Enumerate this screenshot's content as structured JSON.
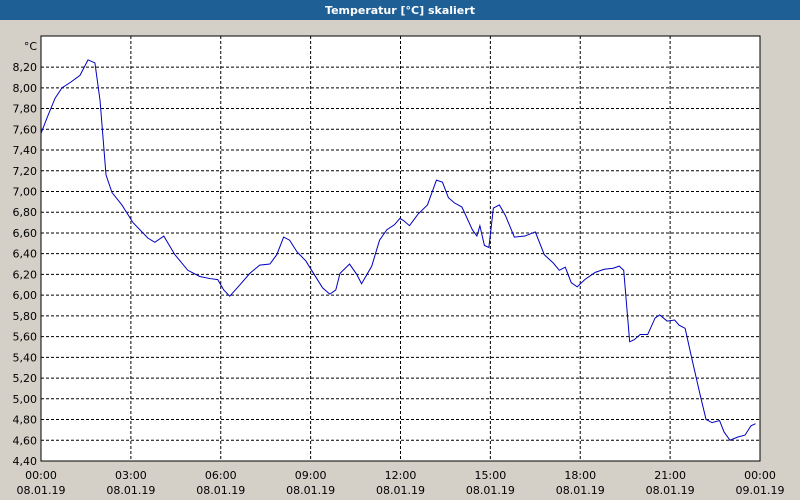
{
  "chart_data": {
    "type": "line",
    "title": "Temperatur [°C] skaliert",
    "y_label": "°C",
    "x": [
      0,
      0.2,
      0.47,
      0.7,
      0.97,
      1.3,
      1.57,
      1.8,
      1.97,
      2.17,
      2.37,
      2.7,
      3.07,
      3.57,
      3.8,
      4.1,
      4.47,
      4.9,
      5.3,
      5.64,
      5.9,
      6.1,
      6.3,
      6.64,
      6.97,
      7.3,
      7.64,
      7.87,
      8.1,
      8.3,
      8.54,
      8.84,
      9.14,
      9.4,
      9.64,
      9.84,
      9.98,
      10.3,
      10.54,
      10.7,
      11.04,
      11.3,
      11.54,
      11.8,
      11.98,
      12.1,
      12.3,
      12.58,
      12.9,
      13.2,
      13.4,
      13.6,
      13.8,
      14.05,
      14.4,
      14.55,
      14.65,
      14.8,
      14.95,
      15.1,
      15.3,
      15.5,
      15.8,
      16.15,
      16.5,
      16.8,
      17.1,
      17.3,
      17.5,
      17.7,
      17.9,
      18.15,
      18.5,
      18.8,
      19.1,
      19.3,
      19.45,
      19.65,
      19.8,
      20.0,
      20.25,
      20.5,
      20.65,
      20.9,
      21.15,
      21.3,
      21.5,
      21.7,
      22.0,
      22.2,
      22.4,
      22.65,
      22.8,
      23.0,
      23.25,
      23.5,
      23.7,
      23.85
    ],
    "series": [
      {
        "name": "Temperatur",
        "color": "#0000c0",
        "values": [
          7.56,
          7.71,
          7.9,
          8.0,
          8.05,
          8.12,
          8.27,
          8.24,
          7.88,
          7.16,
          6.99,
          6.87,
          6.7,
          6.55,
          6.51,
          6.57,
          6.39,
          6.24,
          6.18,
          6.16,
          6.15,
          6.05,
          5.99,
          6.1,
          6.21,
          6.29,
          6.3,
          6.39,
          6.56,
          6.53,
          6.42,
          6.33,
          6.19,
          6.07,
          6.01,
          6.05,
          6.21,
          6.3,
          6.2,
          6.11,
          6.28,
          6.53,
          6.63,
          6.68,
          6.74,
          6.72,
          6.67,
          6.78,
          6.87,
          7.11,
          7.09,
          6.94,
          6.89,
          6.85,
          6.63,
          6.57,
          6.67,
          6.48,
          6.46,
          6.84,
          6.87,
          6.77,
          6.56,
          6.57,
          6.61,
          6.39,
          6.31,
          6.24,
          6.27,
          6.12,
          6.08,
          6.15,
          6.22,
          6.25,
          6.26,
          6.28,
          6.24,
          5.55,
          5.57,
          5.62,
          5.62,
          5.78,
          5.81,
          5.75,
          5.76,
          5.71,
          5.68,
          5.42,
          5.04,
          4.8,
          4.77,
          4.79,
          4.68,
          4.6,
          4.63,
          4.65,
          4.74,
          4.76
        ]
      }
    ],
    "xlim": [
      0,
      24
    ],
    "xticks": [
      {
        "value": 0,
        "label": "00:00",
        "date": "08.01.19"
      },
      {
        "value": 3,
        "label": "03:00",
        "date": "08.01.19"
      },
      {
        "value": 6,
        "label": "06:00",
        "date": "08.01.19"
      },
      {
        "value": 9,
        "label": "09:00",
        "date": "08.01.19"
      },
      {
        "value": 12,
        "label": "12:00",
        "date": "08.01.19"
      },
      {
        "value": 15,
        "label": "15:00",
        "date": "08.01.19"
      },
      {
        "value": 18,
        "label": "18:00",
        "date": "08.01.19"
      },
      {
        "value": 21,
        "label": "21:00",
        "date": "08.01.19"
      },
      {
        "value": 24,
        "label": "00:00",
        "date": "09.01.19"
      }
    ],
    "ylim": [
      4.4,
      8.5
    ],
    "yticks": [
      {
        "value": 4.4,
        "label": "4,40"
      },
      {
        "value": 4.6,
        "label": "4,60"
      },
      {
        "value": 4.8,
        "label": "4,80"
      },
      {
        "value": 5.0,
        "label": "5,00"
      },
      {
        "value": 5.2,
        "label": "5,20"
      },
      {
        "value": 5.4,
        "label": "5,40"
      },
      {
        "value": 5.6,
        "label": "5,60"
      },
      {
        "value": 5.8,
        "label": "5,80"
      },
      {
        "value": 6.0,
        "label": "6,00"
      },
      {
        "value": 6.2,
        "label": "6,20"
      },
      {
        "value": 6.4,
        "label": "6,40"
      },
      {
        "value": 6.6,
        "label": "6,60"
      },
      {
        "value": 6.8,
        "label": "6,80"
      },
      {
        "value": 7.0,
        "label": "7,00"
      },
      {
        "value": 7.2,
        "label": "7,20"
      },
      {
        "value": 7.4,
        "label": "7,40"
      },
      {
        "value": 7.6,
        "label": "7,60"
      },
      {
        "value": 7.8,
        "label": "7,80"
      },
      {
        "value": 8.0,
        "label": "8,00"
      },
      {
        "value": 8.2,
        "label": "8,20"
      }
    ],
    "grid": true
  }
}
